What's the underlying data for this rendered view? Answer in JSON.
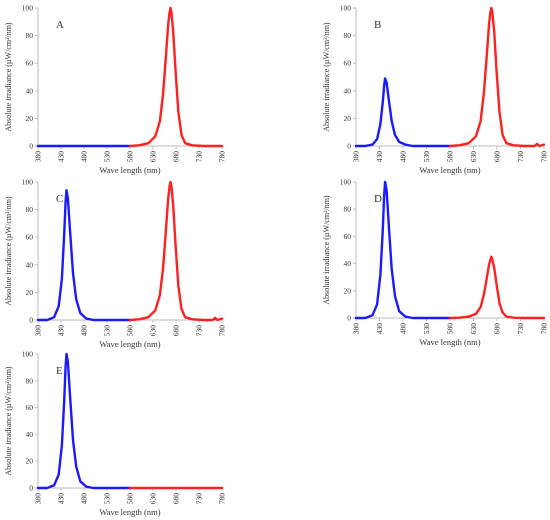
{
  "figure": {
    "colors": {
      "blue": "#1a1aff",
      "red": "#ff2020",
      "axis": "#bdbdbd",
      "text": "#333333"
    }
  },
  "chart_data": [
    {
      "type": "line",
      "panel_label": "A",
      "xlabel": "Wave length (nm)",
      "ylabel": "Absolute irradiance (µW/cm²/nm)",
      "xticks": [
        "380",
        "430",
        "480",
        "530",
        "580",
        "630",
        "680",
        "730",
        "780"
      ],
      "yticks": [
        "0",
        "20",
        "40",
        "60",
        "80",
        "100"
      ],
      "xlim": [
        380,
        780
      ],
      "ylim": [
        0,
        100
      ],
      "grid": false,
      "legend": "none",
      "series": [
        {
          "color": "#1a1aff",
          "x": [
            380,
            430,
            480,
            530,
            580
          ],
          "y": [
            0,
            0,
            0,
            0,
            0
          ]
        },
        {
          "color": "#ff2020",
          "x": [
            580,
            600,
            620,
            635,
            645,
            652,
            658,
            663,
            666,
            668,
            670,
            674,
            679,
            685,
            692,
            700,
            715,
            740,
            780
          ],
          "y": [
            0,
            0.5,
            2,
            7,
            18,
            38,
            65,
            88,
            97,
            100,
            97,
            83,
            55,
            25,
            8,
            2,
            0.5,
            0,
            0
          ]
        }
      ]
    },
    {
      "type": "line",
      "panel_label": "B",
      "xlabel": "Wave length (nm)",
      "ylabel": "Absolute irradiance (µW/cm²/nm)",
      "xticks": [
        "380",
        "430",
        "480",
        "530",
        "580",
        "630",
        "680",
        "730",
        "780"
      ],
      "yticks": [
        "0",
        "20",
        "40",
        "60",
        "80",
        "100"
      ],
      "xlim": [
        380,
        780
      ],
      "ylim": [
        0,
        100
      ],
      "grid": false,
      "legend": "none",
      "series": [
        {
          "color": "#1a1aff",
          "x": [
            380,
            400,
            415,
            425,
            432,
            437,
            440,
            442,
            445,
            450,
            456,
            463,
            472,
            485,
            500,
            530,
            580
          ],
          "y": [
            0,
            0,
            1,
            5,
            16,
            32,
            44,
            49,
            46,
            33,
            18,
            8,
            3,
            1,
            0,
            0,
            0
          ]
        },
        {
          "color": "#ff2020",
          "x": [
            580,
            600,
            620,
            635,
            645,
            652,
            658,
            663,
            666,
            668,
            670,
            674,
            679,
            685,
            692,
            700,
            715,
            740,
            760,
            765,
            770,
            780
          ],
          "y": [
            0,
            0.5,
            2,
            7,
            18,
            38,
            65,
            88,
            97,
            100,
            97,
            83,
            55,
            25,
            8,
            2,
            0.5,
            0,
            0,
            1.5,
            0,
            1
          ]
        }
      ]
    },
    {
      "type": "line",
      "panel_label": "C",
      "xlabel": "Wave length (nm)",
      "ylabel": "Absolute irradiance (µW/cm²/nm)",
      "xticks": [
        "380",
        "430",
        "480",
        "530",
        "580",
        "630",
        "680",
        "730",
        "780"
      ],
      "yticks": [
        "0",
        "20",
        "40",
        "60",
        "80",
        "100"
      ],
      "xlim": [
        380,
        780
      ],
      "ylim": [
        0,
        100
      ],
      "grid": false,
      "legend": "none",
      "series": [
        {
          "color": "#1a1aff",
          "x": [
            380,
            400,
            415,
            425,
            432,
            437,
            440,
            442,
            445,
            450,
            456,
            463,
            472,
            485,
            500,
            530,
            580
          ],
          "y": [
            0,
            0,
            2,
            10,
            30,
            62,
            86,
            94,
            88,
            63,
            34,
            15,
            5,
            1,
            0,
            0,
            0
          ]
        },
        {
          "color": "#ff2020",
          "x": [
            580,
            600,
            620,
            635,
            645,
            652,
            658,
            663,
            666,
            668,
            670,
            674,
            679,
            685,
            692,
            700,
            715,
            740,
            760,
            765,
            770,
            780
          ],
          "y": [
            0,
            0.5,
            2,
            7,
            18,
            38,
            65,
            88,
            97,
            100,
            97,
            83,
            55,
            25,
            8,
            2,
            0.5,
            0,
            0,
            1.5,
            0,
            1
          ]
        }
      ]
    },
    {
      "type": "line",
      "panel_label": "D",
      "xlabel": "Wave length (nm)",
      "ylabel": "Absolute irradiance (µW/cm²/nm)",
      "xticks": [
        "380",
        "430",
        "480",
        "530",
        "580",
        "630",
        "680",
        "730",
        "780"
      ],
      "yticks": [
        "0",
        "20",
        "40",
        "60",
        "80",
        "100"
      ],
      "xlim": [
        380,
        780
      ],
      "ylim": [
        0,
        100
      ],
      "grid": false,
      "legend": "none",
      "series": [
        {
          "color": "#1a1aff",
          "x": [
            380,
            400,
            415,
            425,
            432,
            437,
            440,
            442,
            445,
            450,
            456,
            463,
            472,
            485,
            500,
            530,
            580
          ],
          "y": [
            0,
            0,
            2,
            10,
            32,
            65,
            91,
            100,
            94,
            67,
            36,
            16,
            5,
            1,
            0,
            0,
            0
          ]
        },
        {
          "color": "#ff2020",
          "x": [
            580,
            600,
            620,
            635,
            645,
            652,
            658,
            663,
            666,
            668,
            670,
            674,
            679,
            685,
            692,
            700,
            715,
            740,
            780
          ],
          "y": [
            0,
            0.2,
            1,
            3,
            8,
            17,
            29,
            39,
            43,
            45,
            43,
            37,
            25,
            11,
            4,
            1,
            0.2,
            0,
            0
          ]
        }
      ]
    },
    {
      "type": "line",
      "panel_label": "E",
      "xlabel": "Wave length (nm)",
      "ylabel": "Absolute irradiance (µW/cm²/nm)",
      "xticks": [
        "380",
        "430",
        "480",
        "530",
        "580",
        "630",
        "680",
        "730",
        "780"
      ],
      "yticks": [
        "0",
        "20",
        "40",
        "60",
        "80",
        "100"
      ],
      "xlim": [
        380,
        780
      ],
      "ylim": [
        0,
        100
      ],
      "grid": false,
      "legend": "none",
      "series": [
        {
          "color": "#1a1aff",
          "x": [
            380,
            400,
            415,
            425,
            432,
            437,
            440,
            442,
            445,
            450,
            456,
            463,
            472,
            485,
            500,
            530,
            580
          ],
          "y": [
            0,
            0,
            2,
            10,
            32,
            65,
            91,
            100,
            94,
            67,
            36,
            16,
            5,
            1,
            0,
            0,
            0
          ]
        },
        {
          "color": "#ff2020",
          "x": [
            580,
            630,
            680,
            730,
            780
          ],
          "y": [
            0,
            0,
            0,
            0,
            0
          ]
        }
      ]
    }
  ]
}
